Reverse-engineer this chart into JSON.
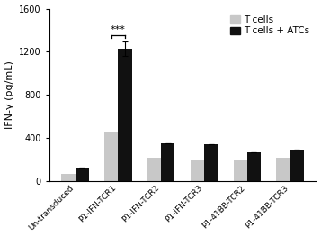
{
  "categories": [
    "Un-transduced",
    "P1-IFN-TCR1",
    "P1-IFN-TCR2",
    "P1-IFN-TCR3",
    "P1-41BB-TCR2",
    "P1-41BB-TCR3"
  ],
  "t_cells": [
    65,
    455,
    215,
    205,
    205,
    215
  ],
  "t_cells_atcs": [
    125,
    1230,
    350,
    340,
    270,
    295
  ],
  "t_cells_atcs_error": [
    0,
    65,
    0,
    0,
    0,
    0
  ],
  "t_cells_color": "#c8c8c8",
  "t_cells_atcs_color": "#111111",
  "bar_width": 0.32,
  "ylim": [
    0,
    1600
  ],
  "yticks": [
    0,
    400,
    800,
    1200,
    1600
  ],
  "ylabel": "IFN-γ (pg/mL)",
  "legend_labels": [
    "T cells",
    "T cells + ATCs"
  ],
  "significance_text": "***",
  "background_color": "#ffffff",
  "ylabel_fontsize": 8,
  "tick_fontsize": 7,
  "xtick_fontsize": 6.5,
  "legend_fontsize": 7.5
}
